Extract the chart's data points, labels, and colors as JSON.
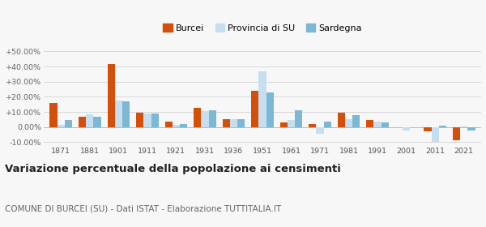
{
  "years": [
    1871,
    1881,
    1901,
    1911,
    1921,
    1931,
    1936,
    1951,
    1961,
    1971,
    1981,
    1991,
    2001,
    2011,
    2021
  ],
  "burcei": [
    16.0,
    7.0,
    41.5,
    9.5,
    3.5,
    12.5,
    5.5,
    24.0,
    3.0,
    2.0,
    9.5,
    4.5,
    0.0,
    -3.0,
    -8.5
  ],
  "provincia_su": [
    1.5,
    8.5,
    17.5,
    9.0,
    1.5,
    10.5,
    5.5,
    37.0,
    4.5,
    -4.5,
    5.5,
    3.5,
    -2.0,
    -10.0,
    0.5
  ],
  "sardegna": [
    4.5,
    7.0,
    17.0,
    9.0,
    2.0,
    11.0,
    5.0,
    23.0,
    11.0,
    3.5,
    8.0,
    3.0,
    0.0,
    1.0,
    -2.5
  ],
  "color_burcei": "#d4500a",
  "color_provincia": "#c5dff0",
  "color_sardegna": "#7bb8d4",
  "title": "Variazione percentuale della popolazione ai censimenti",
  "subtitle": "COMUNE DI BURCEI (SU) - Dati ISTAT - Elaborazione TUTTITALIA.IT",
  "legend_labels": [
    "Burcei",
    "Provincia di SU",
    "Sardegna"
  ],
  "ylim": [
    -12,
    54
  ],
  "yticks": [
    -10,
    0,
    10,
    20,
    30,
    40,
    50
  ],
  "ytick_labels": [
    "-10.00%",
    "0.00%",
    "+10.00%",
    "+20.00%",
    "+30.00%",
    "+40.00%",
    "+50.00%"
  ],
  "bg_color": "#f7f7f7",
  "grid_color": "#d8d8d8",
  "title_fontsize": 9.5,
  "subtitle_fontsize": 7.5,
  "bar_width": 0.26
}
